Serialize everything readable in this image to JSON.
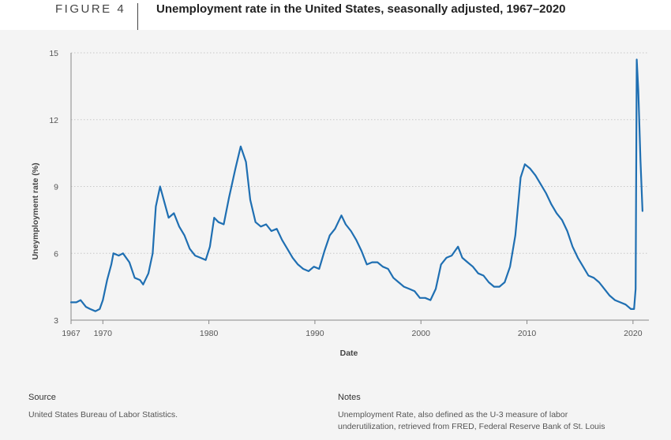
{
  "figure_label": "FIGURE 4",
  "title": "Unemployment rate in the United States, seasonally adjusted, 1967–2020",
  "source": {
    "heading": "Source",
    "text": "United States Bureau of Labor Statistics."
  },
  "notes": {
    "heading": "Notes",
    "line1": "Unemployment Rate, also defined as the U-3 measure of labor",
    "line2": "underutilization, retrieved from FRED, Federal Reserve Bank of St. Louis"
  },
  "chart_data": {
    "type": "line",
    "xlabel": "Date",
    "ylabel": "Uneymployment rate (%)",
    "ylim": [
      3,
      15
    ],
    "xlim": [
      1967,
      2021.5
    ],
    "yticks": [
      3,
      6,
      9,
      12,
      15
    ],
    "xticks": [
      1967,
      1970,
      1980,
      1990,
      2000,
      2010,
      2020
    ],
    "grid": "horizontal dotted",
    "series_color": "#1f6fb2",
    "series": [
      {
        "points": [
          [
            1967.0,
            3.8
          ],
          [
            1967.5,
            3.8
          ],
          [
            1967.9,
            3.9
          ],
          [
            1968.4,
            3.6
          ],
          [
            1968.8,
            3.5
          ],
          [
            1969.3,
            3.4
          ],
          [
            1969.7,
            3.5
          ],
          [
            1970.0,
            3.9
          ],
          [
            1970.4,
            4.8
          ],
          [
            1970.8,
            5.5
          ],
          [
            1971.0,
            6.0
          ],
          [
            1971.5,
            5.9
          ],
          [
            1971.9,
            6.0
          ],
          [
            1972.5,
            5.6
          ],
          [
            1973.0,
            4.9
          ],
          [
            1973.5,
            4.8
          ],
          [
            1973.8,
            4.6
          ],
          [
            1974.3,
            5.1
          ],
          [
            1974.7,
            6.0
          ],
          [
            1975.0,
            8.1
          ],
          [
            1975.4,
            9.0
          ],
          [
            1975.8,
            8.3
          ],
          [
            1976.2,
            7.6
          ],
          [
            1976.7,
            7.8
          ],
          [
            1977.2,
            7.2
          ],
          [
            1977.7,
            6.8
          ],
          [
            1978.2,
            6.2
          ],
          [
            1978.7,
            5.9
          ],
          [
            1979.2,
            5.8
          ],
          [
            1979.7,
            5.7
          ],
          [
            1980.1,
            6.3
          ],
          [
            1980.5,
            7.6
          ],
          [
            1980.9,
            7.4
          ],
          [
            1981.4,
            7.3
          ],
          [
            1981.9,
            8.5
          ],
          [
            1982.5,
            9.8
          ],
          [
            1983.0,
            10.8
          ],
          [
            1983.5,
            10.1
          ],
          [
            1983.9,
            8.4
          ],
          [
            1984.4,
            7.4
          ],
          [
            1984.9,
            7.2
          ],
          [
            1985.4,
            7.3
          ],
          [
            1985.9,
            7.0
          ],
          [
            1986.4,
            7.1
          ],
          [
            1986.9,
            6.6
          ],
          [
            1987.4,
            6.2
          ],
          [
            1987.9,
            5.8
          ],
          [
            1988.4,
            5.5
          ],
          [
            1988.9,
            5.3
          ],
          [
            1989.4,
            5.2
          ],
          [
            1989.9,
            5.4
          ],
          [
            1990.4,
            5.3
          ],
          [
            1990.9,
            6.1
          ],
          [
            1991.4,
            6.8
          ],
          [
            1991.9,
            7.1
          ],
          [
            1992.5,
            7.7
          ],
          [
            1992.9,
            7.3
          ],
          [
            1993.4,
            7.0
          ],
          [
            1993.9,
            6.6
          ],
          [
            1994.4,
            6.1
          ],
          [
            1994.9,
            5.5
          ],
          [
            1995.4,
            5.6
          ],
          [
            1995.9,
            5.6
          ],
          [
            1996.4,
            5.4
          ],
          [
            1996.9,
            5.3
          ],
          [
            1997.4,
            4.9
          ],
          [
            1997.9,
            4.7
          ],
          [
            1998.4,
            4.5
          ],
          [
            1998.9,
            4.4
          ],
          [
            1999.4,
            4.3
          ],
          [
            1999.9,
            4.0
          ],
          [
            2000.4,
            4.0
          ],
          [
            2000.9,
            3.9
          ],
          [
            2001.4,
            4.4
          ],
          [
            2001.9,
            5.5
          ],
          [
            2002.4,
            5.8
          ],
          [
            2002.9,
            5.9
          ],
          [
            2003.5,
            6.3
          ],
          [
            2003.9,
            5.8
          ],
          [
            2004.4,
            5.6
          ],
          [
            2004.9,
            5.4
          ],
          [
            2005.4,
            5.1
          ],
          [
            2005.9,
            5.0
          ],
          [
            2006.4,
            4.7
          ],
          [
            2006.9,
            4.5
          ],
          [
            2007.4,
            4.5
          ],
          [
            2007.9,
            4.7
          ],
          [
            2008.4,
            5.4
          ],
          [
            2008.9,
            6.8
          ],
          [
            2009.4,
            9.4
          ],
          [
            2009.8,
            10.0
          ],
          [
            2010.3,
            9.8
          ],
          [
            2010.8,
            9.5
          ],
          [
            2011.3,
            9.1
          ],
          [
            2011.8,
            8.7
          ],
          [
            2012.3,
            8.2
          ],
          [
            2012.8,
            7.8
          ],
          [
            2013.3,
            7.5
          ],
          [
            2013.8,
            7.0
          ],
          [
            2014.3,
            6.3
          ],
          [
            2014.8,
            5.8
          ],
          [
            2015.3,
            5.4
          ],
          [
            2015.8,
            5.0
          ],
          [
            2016.3,
            4.9
          ],
          [
            2016.8,
            4.7
          ],
          [
            2017.3,
            4.4
          ],
          [
            2017.8,
            4.1
          ],
          [
            2018.3,
            3.9
          ],
          [
            2018.8,
            3.8
          ],
          [
            2019.3,
            3.7
          ],
          [
            2019.8,
            3.5
          ],
          [
            2020.1,
            3.5
          ],
          [
            2020.25,
            4.4
          ],
          [
            2020.35,
            14.7
          ],
          [
            2020.5,
            13.3
          ],
          [
            2020.7,
            10.2
          ],
          [
            2020.9,
            7.9
          ]
        ]
      }
    ]
  }
}
